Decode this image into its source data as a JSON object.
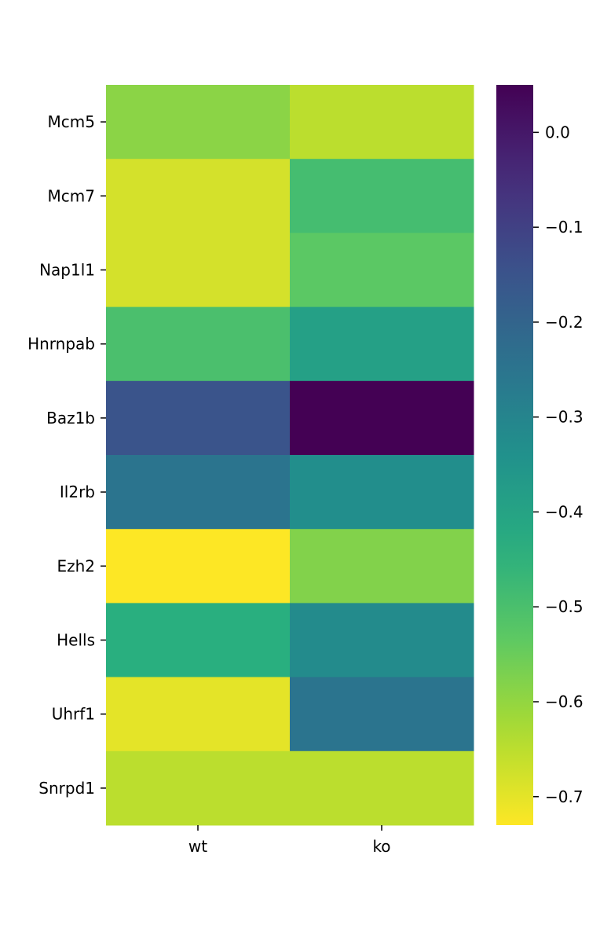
{
  "chart_data": {
    "type": "heatmap",
    "title": "",
    "xlabel": "",
    "ylabel": "",
    "columns": [
      "wt",
      "ko"
    ],
    "rows": [
      "Mcm5",
      "Mcm7",
      "Nap1l1",
      "Hnrnpab",
      "Baz1b",
      "Il2rb",
      "Ezh2",
      "Hells",
      "Uhrf1",
      "Snrpd1"
    ],
    "values": [
      [
        -0.59,
        -0.65
      ],
      [
        -0.68,
        -0.49
      ],
      [
        -0.68,
        -0.53
      ],
      [
        -0.5,
        -0.39
      ],
      [
        -0.15,
        0.05
      ],
      [
        -0.25,
        -0.33
      ],
      [
        -0.73,
        -0.58
      ],
      [
        -0.44,
        -0.32
      ],
      [
        -0.7,
        -0.25
      ],
      [
        -0.65,
        -0.65
      ]
    ],
    "colormap": "viridis_r",
    "vmin": -0.73,
    "vmax": 0.05,
    "colorbar": {
      "ticks": [
        0.0,
        -0.1,
        -0.2,
        -0.3,
        -0.4,
        -0.5,
        -0.6,
        -0.7
      ],
      "tick_labels": [
        "0.0",
        "−0.1",
        "−0.2",
        "−0.3",
        "−0.4",
        "−0.5",
        "−0.6",
        "−0.7"
      ]
    },
    "grid": false,
    "legend": "colorbar-right"
  }
}
